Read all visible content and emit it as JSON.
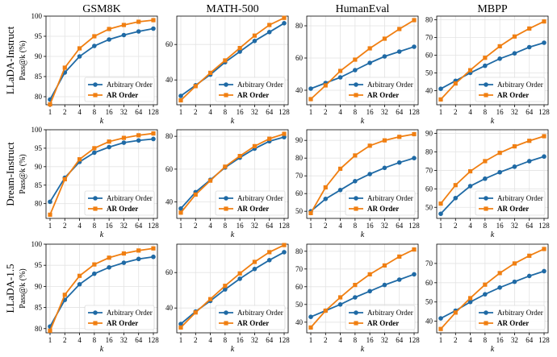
{
  "figure": {
    "columns": [
      "GSM8K",
      "MATH-500",
      "HumanEval",
      "MBPP"
    ],
    "rows": [
      "LLaDA-Instruct",
      "Dream-Instruct",
      "LLaDA-1.5"
    ],
    "ylabel": "Pass@k (%)",
    "xlabel": "k",
    "colors": {
      "arbitrary": "#1f6aa5",
      "ar": "#f07f12"
    }
  },
  "chart_data": [
    {
      "type": "line",
      "row": "LLaDA-Instruct",
      "title": "GSM8K",
      "xlabel": "k",
      "ylabel": "Pass@k (%)",
      "categories": [
        "1",
        "2",
        "4",
        "8",
        "16",
        "32",
        "64",
        "128"
      ],
      "ylim": [
        78,
        100
      ],
      "yticks": [
        80,
        85,
        90,
        95,
        100
      ],
      "legend": "lower-right",
      "series": [
        {
          "name": "Arbitrary Order",
          "values": [
            79.3,
            86.0,
            90.0,
            92.6,
            94.2,
            95.3,
            96.2,
            96.9
          ]
        },
        {
          "name": "AR Order",
          "values": [
            78.1,
            87.2,
            92.0,
            95.0,
            96.8,
            97.8,
            98.6,
            99.0
          ]
        }
      ]
    },
    {
      "type": "line",
      "row": "LLaDA-Instruct",
      "title": "MATH-500",
      "xlabel": "k",
      "ylabel": "Pass@k (%)",
      "categories": [
        "1",
        "2",
        "4",
        "8",
        "16",
        "32",
        "64",
        "128"
      ],
      "ylim": [
        26,
        76
      ],
      "yticks": [
        40,
        60
      ],
      "legend": "lower-right",
      "series": [
        {
          "name": "Arbitrary Order",
          "values": [
            31.0,
            37.0,
            43.0,
            50.0,
            56.0,
            62.0,
            67.0,
            72.0
          ]
        },
        {
          "name": "AR Order",
          "values": [
            28.5,
            36.5,
            44.0,
            51.0,
            58.0,
            65.0,
            71.0,
            75.0
          ]
        }
      ]
    },
    {
      "type": "line",
      "row": "LLaDA-Instruct",
      "title": "HumanEval",
      "xlabel": "k",
      "ylabel": "Pass@k (%)",
      "categories": [
        "1",
        "2",
        "4",
        "8",
        "16",
        "32",
        "64",
        "128"
      ],
      "ylim": [
        31,
        86
      ],
      "yticks": [
        40,
        60,
        80
      ],
      "legend": "lower-right",
      "series": [
        {
          "name": "Arbitrary Order",
          "values": [
            41.0,
            44.5,
            48.0,
            52.5,
            57.0,
            61.0,
            64.0,
            67.0
          ]
        },
        {
          "name": "AR Order",
          "values": [
            34.5,
            43.0,
            52.0,
            59.0,
            66.0,
            72.0,
            78.0,
            83.5
          ]
        }
      ]
    },
    {
      "type": "line",
      "row": "LLaDA-Instruct",
      "title": "MBPP",
      "xlabel": "k",
      "ylabel": "Pass@k (%)",
      "categories": [
        "1",
        "2",
        "4",
        "8",
        "16",
        "32",
        "64",
        "128"
      ],
      "ylim": [
        32,
        82
      ],
      "yticks": [
        40,
        50,
        60,
        70,
        80
      ],
      "legend": "lower-right",
      "series": [
        {
          "name": "Arbitrary Order",
          "values": [
            41.0,
            45.5,
            50.0,
            54.0,
            58.0,
            61.0,
            64.5,
            67.0
          ]
        },
        {
          "name": "AR Order",
          "values": [
            35.0,
            44.0,
            51.5,
            58.5,
            65.0,
            70.5,
            75.0,
            79.0
          ]
        }
      ]
    },
    {
      "type": "line",
      "row": "Dream-Instruct",
      "title": "GSM8K",
      "xlabel": "k",
      "ylabel": "Pass@k (%)",
      "categories": [
        "1",
        "2",
        "4",
        "8",
        "16",
        "32",
        "64",
        "128"
      ],
      "ylim": [
        76,
        100
      ],
      "yticks": [
        80,
        85,
        90,
        95,
        100
      ],
      "legend": "lower-right",
      "series": [
        {
          "name": "Arbitrary Order",
          "values": [
            80.5,
            87.0,
            91.3,
            93.8,
            95.3,
            96.5,
            97.1,
            97.5
          ]
        },
        {
          "name": "AR Order",
          "values": [
            77.0,
            86.6,
            92.0,
            95.0,
            96.8,
            97.8,
            98.5,
            99.0
          ]
        }
      ]
    },
    {
      "type": "line",
      "row": "Dream-Instruct",
      "title": "MATH-500",
      "xlabel": "k",
      "ylabel": "Pass@k (%)",
      "categories": [
        "1",
        "2",
        "4",
        "8",
        "16",
        "32",
        "64",
        "128"
      ],
      "ylim": [
        30,
        84
      ],
      "yticks": [
        40,
        60,
        80
      ],
      "legend": "lower-right",
      "series": [
        {
          "name": "Arbitrary Order",
          "values": [
            36.0,
            46.0,
            53.5,
            61.0,
            67.0,
            72.5,
            77.0,
            79.5
          ]
        },
        {
          "name": "AR Order",
          "values": [
            33.5,
            44.5,
            53.0,
            61.5,
            68.0,
            74.0,
            78.5,
            81.5
          ]
        }
      ]
    },
    {
      "type": "line",
      "row": "Dream-Instruct",
      "title": "HumanEval",
      "xlabel": "k",
      "ylabel": "Pass@k (%)",
      "categories": [
        "1",
        "2",
        "4",
        "8",
        "16",
        "32",
        "64",
        "128"
      ],
      "ylim": [
        46,
        96
      ],
      "yticks": [
        50,
        60,
        70,
        80,
        90
      ],
      "legend": "lower-right",
      "series": [
        {
          "name": "Arbitrary Order",
          "values": [
            50.0,
            57.0,
            62.0,
            67.0,
            71.0,
            74.5,
            77.5,
            80.0
          ]
        },
        {
          "name": "AR Order",
          "values": [
            49.0,
            63.5,
            74.0,
            81.5,
            87.0,
            90.0,
            92.0,
            93.5
          ]
        }
      ]
    },
    {
      "type": "line",
      "row": "Dream-Instruct",
      "title": "MBPP",
      "xlabel": "k",
      "ylabel": "Pass@k (%)",
      "categories": [
        "1",
        "2",
        "4",
        "8",
        "16",
        "32",
        "64",
        "128"
      ],
      "ylim": [
        44,
        92
      ],
      "yticks": [
        50,
        60,
        70,
        80,
        90
      ],
      "legend": "lower-right",
      "series": [
        {
          "name": "Arbitrary Order",
          "values": [
            46.5,
            55.0,
            61.5,
            65.5,
            69.0,
            72.0,
            75.0,
            77.5
          ]
        },
        {
          "name": "AR Order",
          "values": [
            52.0,
            62.0,
            69.5,
            75.0,
            79.5,
            83.0,
            86.0,
            88.5
          ]
        }
      ]
    },
    {
      "type": "line",
      "row": "LLaDA-1.5",
      "title": "GSM8K",
      "xlabel": "k",
      "ylabel": "Pass@k (%)",
      "categories": [
        "1",
        "2",
        "4",
        "8",
        "16",
        "32",
        "64",
        "128"
      ],
      "ylim": [
        79,
        100
      ],
      "yticks": [
        80,
        85,
        90,
        95,
        100
      ],
      "legend": "lower-right",
      "series": [
        {
          "name": "Arbitrary Order",
          "values": [
            80.5,
            86.8,
            90.5,
            93.0,
            94.5,
            95.6,
            96.5,
            97.0
          ]
        },
        {
          "name": "AR Order",
          "values": [
            79.5,
            88.0,
            92.5,
            95.2,
            96.8,
            97.8,
            98.5,
            99.0
          ]
        }
      ]
    },
    {
      "type": "line",
      "row": "LLaDA-1.5",
      "title": "MATH-500",
      "xlabel": "k",
      "ylabel": "Pass@k (%)",
      "categories": [
        "1",
        "2",
        "4",
        "8",
        "16",
        "32",
        "64",
        "128"
      ],
      "ylim": [
        26,
        76
      ],
      "yticks": [
        40,
        60
      ],
      "legend": "lower-right",
      "series": [
        {
          "name": "Arbitrary Order",
          "values": [
            31.0,
            38.0,
            44.0,
            50.5,
            56.5,
            62.0,
            67.0,
            71.5
          ]
        },
        {
          "name": "AR Order",
          "values": [
            29.0,
            37.5,
            45.0,
            52.5,
            59.5,
            66.0,
            71.5,
            75.5
          ]
        }
      ]
    },
    {
      "type": "line",
      "row": "LLaDA-1.5",
      "title": "HumanEval",
      "xlabel": "k",
      "ylabel": "Pass@k (%)",
      "categories": [
        "1",
        "2",
        "4",
        "8",
        "16",
        "32",
        "64",
        "128"
      ],
      "ylim": [
        34,
        84
      ],
      "yticks": [
        40,
        50,
        60,
        70,
        80
      ],
      "legend": "lower-right",
      "series": [
        {
          "name": "Arbitrary Order",
          "values": [
            43.0,
            46.5,
            50.0,
            54.0,
            57.5,
            61.0,
            64.0,
            67.0
          ]
        },
        {
          "name": "AR Order",
          "values": [
            37.0,
            46.5,
            54.0,
            61.0,
            67.0,
            72.0,
            77.0,
            81.0
          ]
        }
      ]
    },
    {
      "type": "line",
      "row": "LLaDA-1.5",
      "title": "MBPP",
      "xlabel": "k",
      "ylabel": "Pass@k (%)",
      "categories": [
        "1",
        "2",
        "4",
        "8",
        "16",
        "32",
        "64",
        "128"
      ],
      "ylim": [
        34,
        80
      ],
      "yticks": [
        40,
        50,
        60,
        70
      ],
      "legend": "lower-right",
      "series": [
        {
          "name": "Arbitrary Order",
          "values": [
            41.5,
            45.5,
            50.0,
            54.0,
            57.5,
            60.5,
            63.5,
            66.0
          ]
        },
        {
          "name": "AR Order",
          "values": [
            36.0,
            44.5,
            52.0,
            59.0,
            65.0,
            70.0,
            74.0,
            77.5
          ]
        }
      ]
    }
  ]
}
